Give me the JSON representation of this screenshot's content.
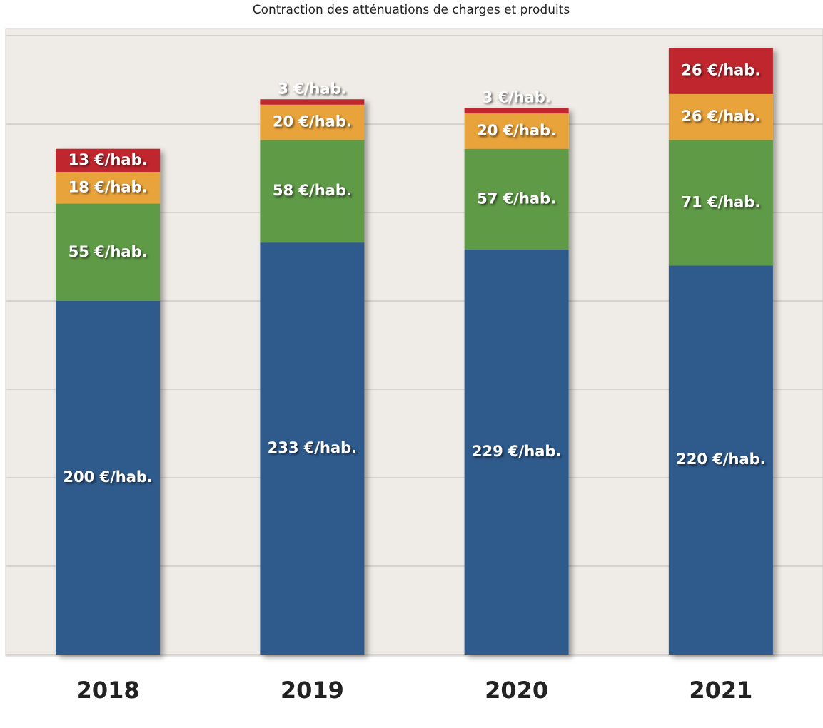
{
  "chart_data": {
    "type": "stacked_bar",
    "title": "Contraction des atténuations de charges et produits",
    "categories": [
      "2018",
      "2019",
      "2020",
      "2021"
    ],
    "series": [
      {
        "color": "#2f5a8c",
        "values": [
          200,
          233,
          229,
          220
        ],
        "value_labels": [
          "200 €/hab.",
          "233 €/hab.",
          "229 €/hab.",
          "220 €/hab."
        ]
      },
      {
        "color": "#5f9a47",
        "values": [
          55,
          58,
          57,
          71
        ],
        "value_labels": [
          "55 €/hab.",
          "58 €/hab.",
          "57 €/hab.",
          "71 €/hab."
        ]
      },
      {
        "color": "#e9a33a",
        "values": [
          18,
          20,
          20,
          26
        ],
        "value_labels": [
          "18 €/hab.",
          "20 €/hab.",
          "20 €/hab.",
          "26 €/hab."
        ]
      },
      {
        "color": "#c0272d",
        "values": [
          13,
          3,
          3,
          26
        ],
        "value_labels": [
          "13 €/hab.",
          "3 €/hab.",
          "3 €/hab.",
          "26 €/hab."
        ]
      }
    ],
    "ylim": [
      0,
      350
    ],
    "yticks": [
      0,
      50,
      100,
      150,
      200,
      250,
      300,
      350
    ],
    "grid": true
  }
}
